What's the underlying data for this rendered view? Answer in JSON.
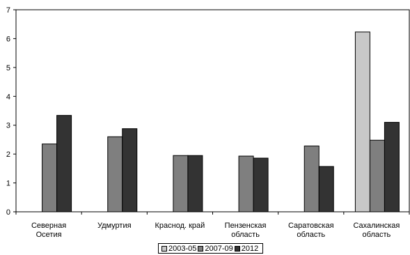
{
  "chart_data": {
    "type": "bar",
    "categories": [
      [
        "Северная",
        "Осетия"
      ],
      [
        "Удмуртия"
      ],
      [
        "Краснод. край"
      ],
      [
        "Пензенская",
        "область"
      ],
      [
        "Саратовская",
        "область"
      ],
      [
        "Сахалинская",
        "область"
      ]
    ],
    "series": [
      {
        "name": "2003-05",
        "color": "#c8c8c8",
        "values": [
          null,
          null,
          null,
          null,
          null,
          6.23
        ]
      },
      {
        "name": "2007-09",
        "color": "#7f7f7f",
        "values": [
          2.35,
          2.6,
          1.95,
          1.93,
          2.28,
          2.48
        ]
      },
      {
        "name": "2012",
        "color": "#333333",
        "values": [
          3.34,
          2.88,
          1.95,
          1.86,
          1.57,
          3.1
        ]
      }
    ],
    "ylim": [
      0,
      7
    ],
    "yticks": [
      "0",
      "1",
      "2",
      "3",
      "4",
      "5",
      "6",
      "7"
    ],
    "grid": false,
    "legend": "bottom-center"
  }
}
